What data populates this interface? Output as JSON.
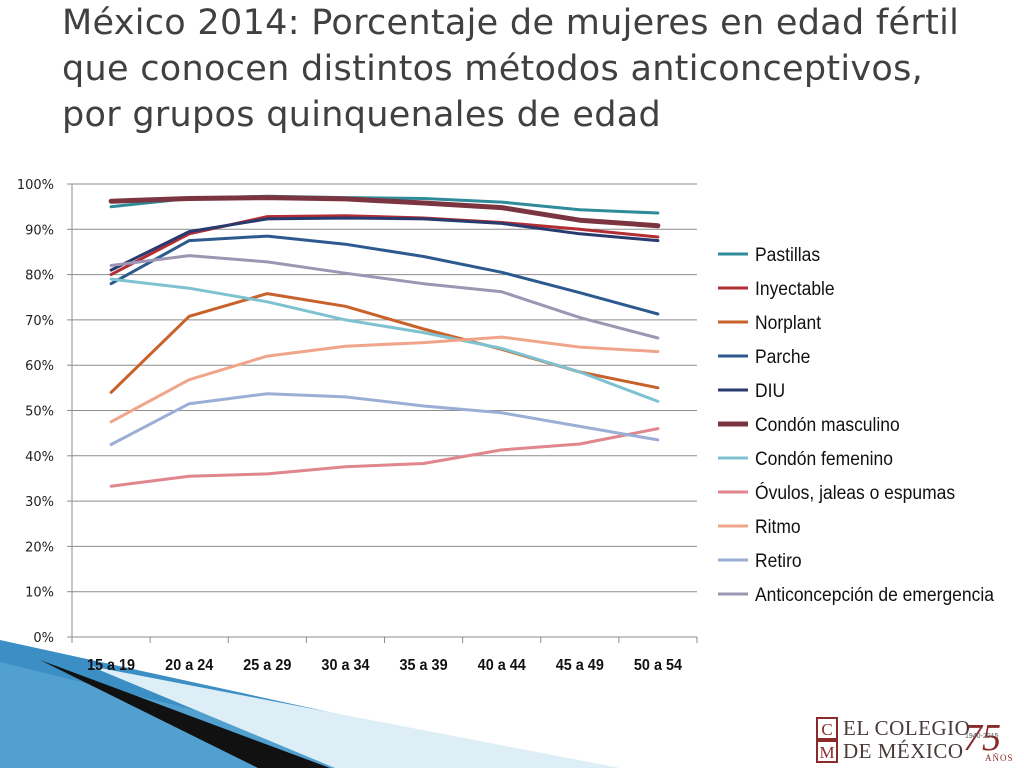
{
  "slide": {
    "title": "México 2014: Porcentaje de mujeres en edad fértil que conocen distintos métodos anticonceptivos, por grupos quinquenales de edad"
  },
  "logo": {
    "line1": "EL COLEGIO",
    "line2": "DE MÉXICO",
    "monogram_top": "C",
    "monogram_bottom": "M",
    "anniversary_number": "75",
    "anniversary_years": "1940-2015",
    "anniversary_word": "AÑOS",
    "color": "#8a2a2a"
  },
  "chart_data": {
    "type": "line",
    "title": "",
    "xlabel": "",
    "ylabel": "",
    "categories": [
      "15 a 19",
      "20 a 24",
      "25 a 29",
      "30 a 34",
      "35 a 39",
      "40 a 44",
      "45 a 49",
      "50 a 54"
    ],
    "ylim": [
      0,
      100
    ],
    "yticks": [
      "0%",
      "10%",
      "20%",
      "30%",
      "40%",
      "50%",
      "60%",
      "70%",
      "80%",
      "90%",
      "100%"
    ],
    "grid": true,
    "legend_position": "right",
    "series": [
      {
        "name": "Pastillas",
        "color": "#2e8b9a",
        "width": 3,
        "values": [
          95.0,
          96.8,
          97.3,
          97.0,
          96.8,
          96.0,
          94.3,
          93.6
        ]
      },
      {
        "name": "Inyectable",
        "color": "#b22d34",
        "width": 3,
        "values": [
          80.0,
          89.0,
          92.8,
          93.0,
          92.5,
          91.5,
          90.0,
          88.3
        ]
      },
      {
        "name": "Norplant",
        "color": "#c9612a",
        "width": 3,
        "values": [
          54.0,
          70.8,
          75.8,
          73.0,
          68.0,
          63.5,
          58.5,
          55.0
        ]
      },
      {
        "name": "Parche",
        "color": "#2c5a8f",
        "width": 3,
        "values": [
          78.0,
          87.5,
          88.5,
          86.7,
          84.0,
          80.5,
          76.0,
          71.3
        ]
      },
      {
        "name": "DIU",
        "color": "#283a6e",
        "width": 3,
        "values": [
          81.0,
          89.5,
          92.3,
          92.5,
          92.3,
          91.3,
          89.0,
          87.5
        ]
      },
      {
        "name": "Condón masculino",
        "color": "#7b3540",
        "width": 5,
        "values": [
          96.2,
          96.8,
          97.0,
          96.7,
          95.8,
          94.8,
          92.0,
          90.8
        ]
      },
      {
        "name": "Condón femenino",
        "color": "#7ec2d2",
        "width": 3,
        "values": [
          79.0,
          77.0,
          74.0,
          70.0,
          67.2,
          63.7,
          58.5,
          52.0
        ]
      },
      {
        "name": "Óvulos, jaleas o espumas",
        "color": "#e0868c",
        "width": 3,
        "values": [
          33.3,
          35.5,
          36.0,
          37.6,
          38.3,
          41.3,
          42.6,
          46.0
        ]
      },
      {
        "name": "Ritmo",
        "color": "#f0a48a",
        "width": 3,
        "values": [
          47.5,
          56.8,
          62.0,
          64.2,
          65.0,
          66.2,
          64.0,
          63.0
        ]
      },
      {
        "name": "Retiro",
        "color": "#9aaed6",
        "width": 3,
        "values": [
          42.5,
          51.5,
          53.7,
          53.0,
          51.0,
          49.5,
          46.5,
          43.5
        ]
      },
      {
        "name": "Anticoncepción de emergencia",
        "color": "#9c96b2",
        "width": 3,
        "values": [
          82.0,
          84.2,
          82.8,
          80.3,
          78.0,
          76.2,
          70.5,
          66.0
        ]
      }
    ]
  }
}
